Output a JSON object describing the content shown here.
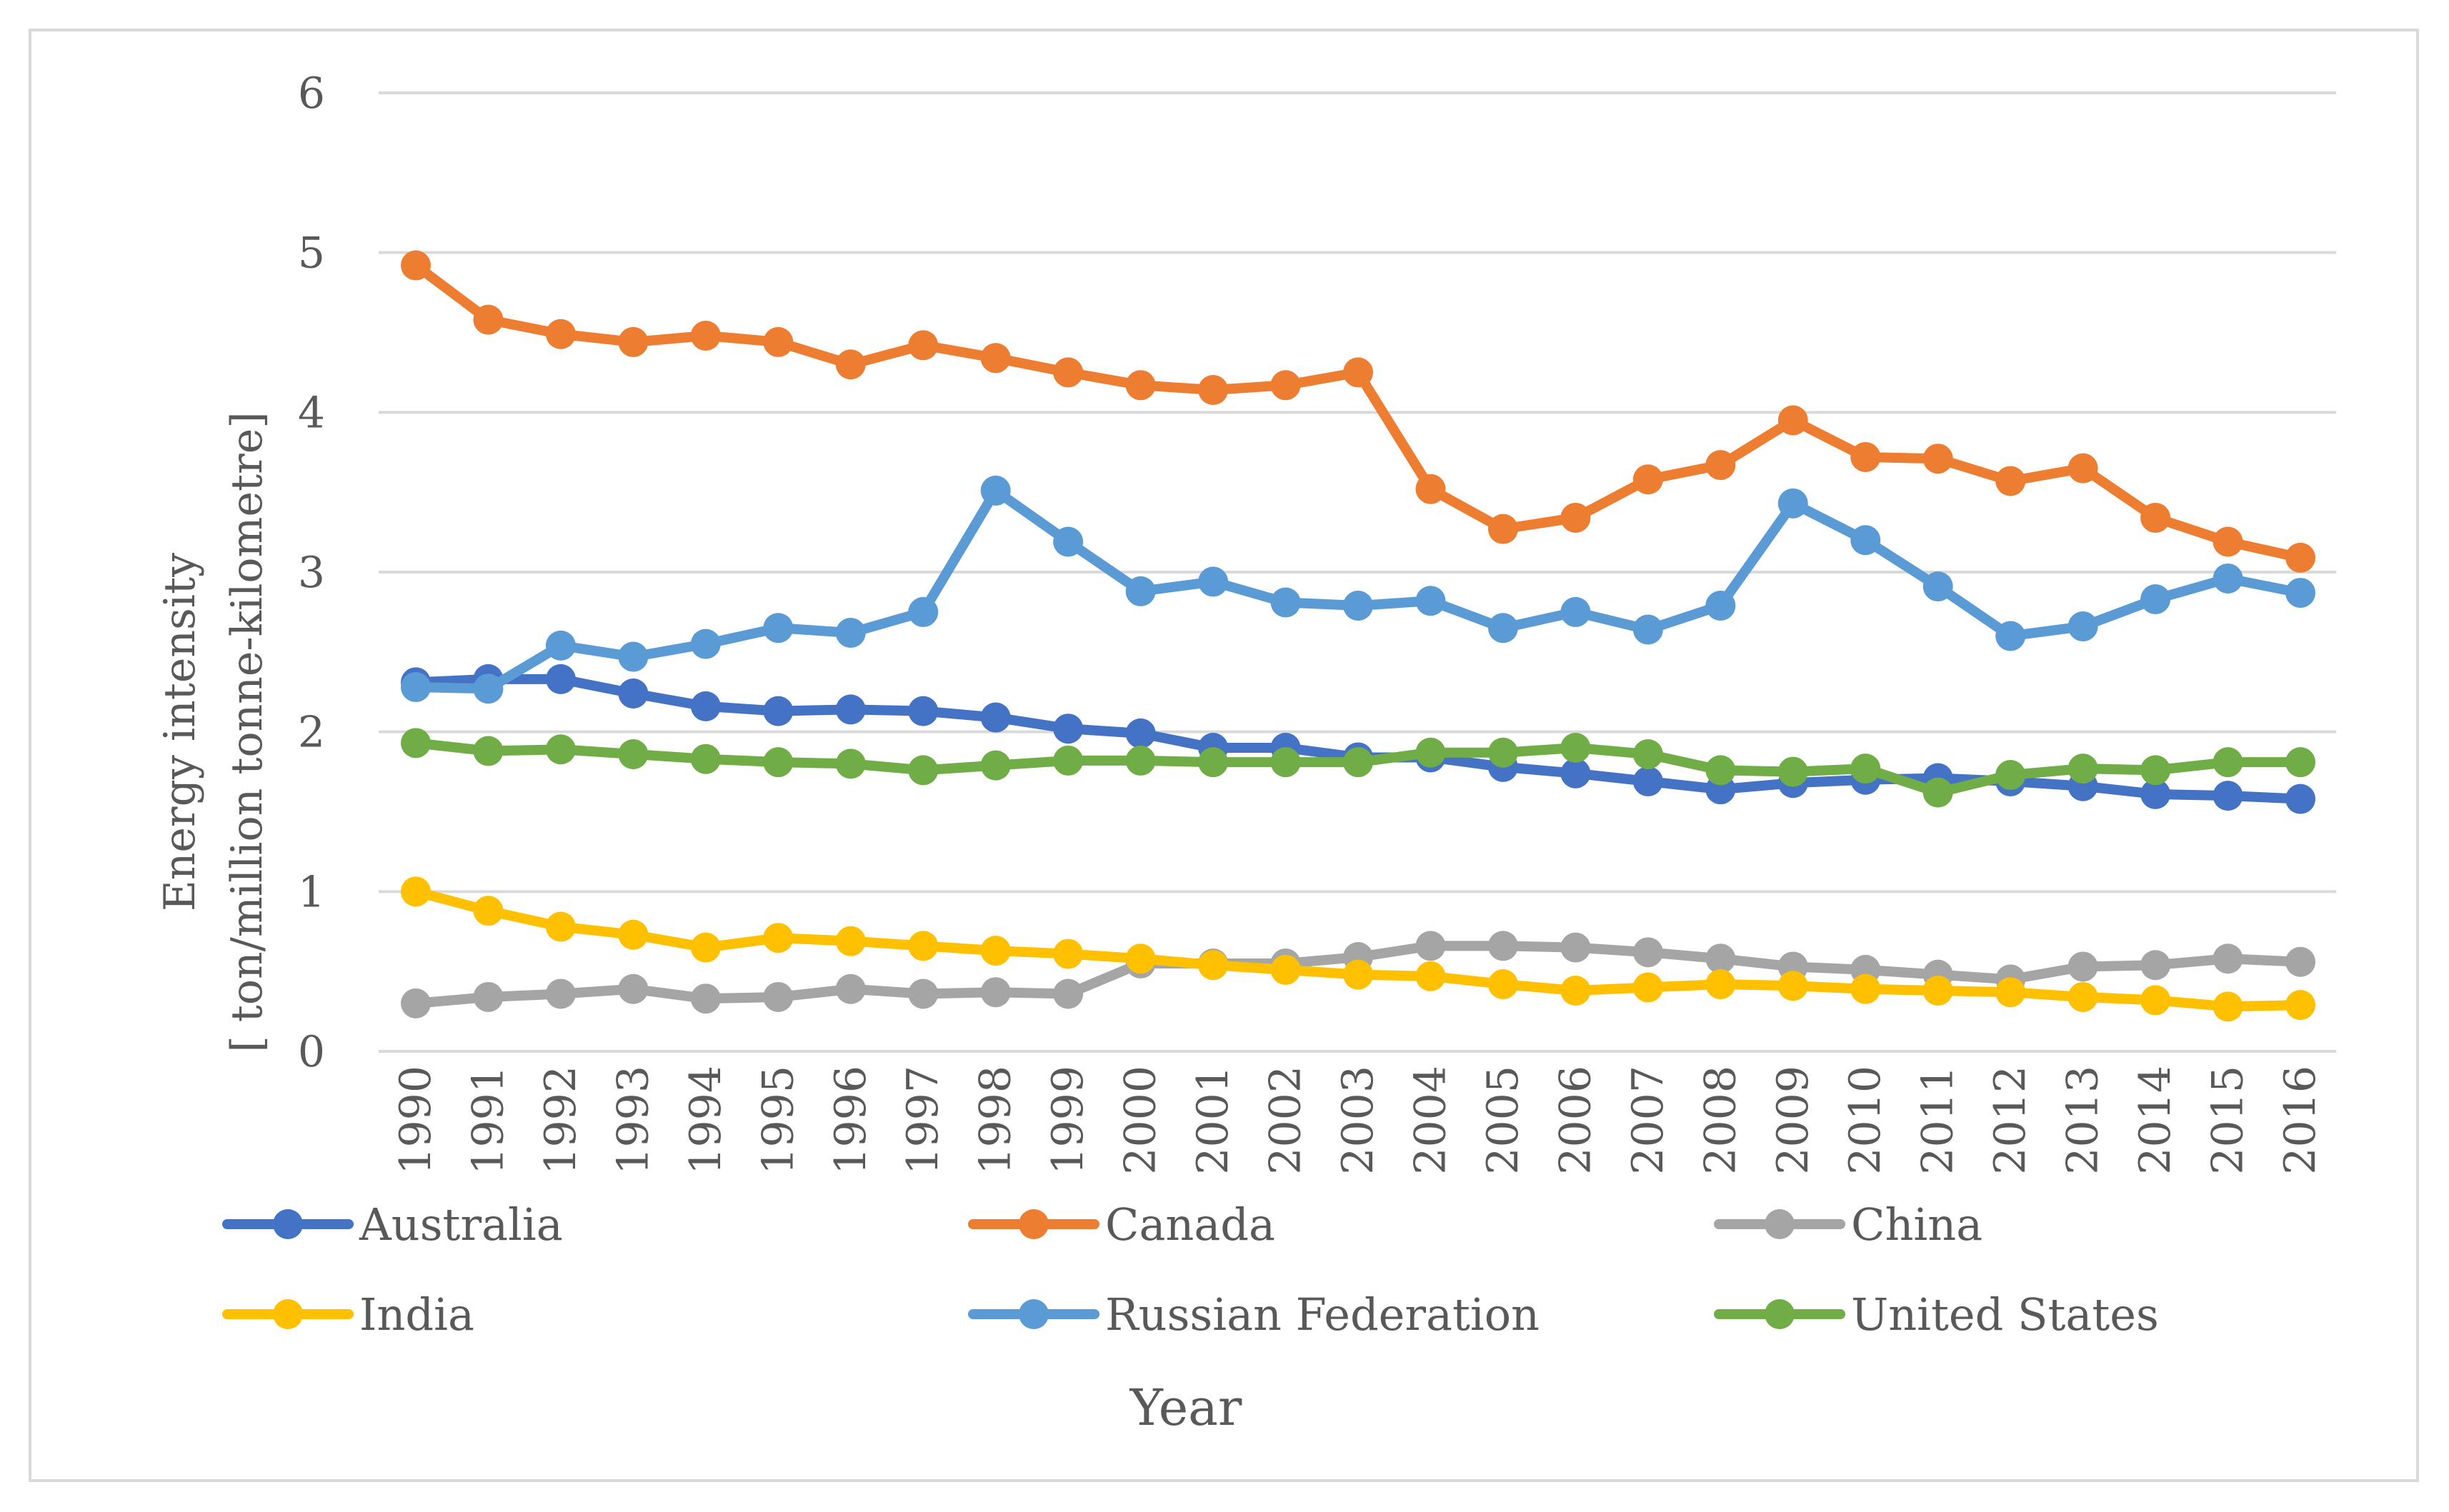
{
  "chart_data": {
    "type": "line",
    "title": "",
    "xlabel": "Year",
    "ylabel_line1": "Energy intensity",
    "ylabel_line2": "[ ton/million tonne-kilometre]",
    "ylim": [
      0,
      6
    ],
    "yticks": [
      "0",
      "1",
      "2",
      "3",
      "4",
      "5",
      "6"
    ],
    "grid": true,
    "legend_position": "bottom",
    "x": [
      "1990",
      "1991",
      "1992",
      "1993",
      "1994",
      "1995",
      "1996",
      "1997",
      "1998",
      "1999",
      "2000",
      "2001",
      "2002",
      "2003",
      "2004",
      "2005",
      "2006",
      "2007",
      "2008",
      "2009",
      "2010",
      "2011",
      "2012",
      "2013",
      "2014",
      "2015",
      "2016"
    ],
    "series": [
      {
        "name": "Australia",
        "color": "#4472c4",
        "values": [
          2.31,
          2.33,
          2.33,
          2.24,
          2.16,
          2.13,
          2.14,
          2.13,
          2.09,
          2.02,
          1.99,
          1.9,
          1.9,
          1.84,
          1.84,
          1.78,
          1.74,
          1.69,
          1.64,
          1.68,
          1.7,
          1.71,
          1.69,
          1.66,
          1.61,
          1.6,
          1.58
        ]
      },
      {
        "name": "Canada",
        "color": "#ed7d31",
        "values": [
          4.92,
          4.58,
          4.49,
          4.44,
          4.48,
          4.44,
          4.3,
          4.42,
          4.34,
          4.25,
          4.17,
          4.14,
          4.17,
          4.25,
          3.52,
          3.27,
          3.34,
          3.58,
          3.67,
          3.95,
          3.72,
          3.71,
          3.57,
          3.65,
          3.34,
          3.19,
          3.09
        ]
      },
      {
        "name": "China",
        "color": "#a5a5a5",
        "values": [
          0.3,
          0.34,
          0.36,
          0.39,
          0.33,
          0.34,
          0.39,
          0.36,
          0.37,
          0.36,
          0.55,
          0.55,
          0.55,
          0.59,
          0.66,
          0.66,
          0.65,
          0.62,
          0.58,
          0.53,
          0.51,
          0.48,
          0.45,
          0.53,
          0.54,
          0.58,
          0.56
        ]
      },
      {
        "name": "India",
        "color": "#ffc000",
        "values": [
          1.0,
          0.88,
          0.78,
          0.73,
          0.65,
          0.71,
          0.69,
          0.66,
          0.63,
          0.61,
          0.58,
          0.54,
          0.51,
          0.48,
          0.47,
          0.42,
          0.38,
          0.4,
          0.42,
          0.41,
          0.39,
          0.38,
          0.37,
          0.34,
          0.32,
          0.28,
          0.29
        ]
      },
      {
        "name": "Russian Federation",
        "color": "#5b9bd5",
        "values": [
          2.28,
          2.27,
          2.54,
          2.47,
          2.55,
          2.65,
          2.62,
          2.75,
          3.51,
          3.19,
          2.88,
          2.94,
          2.81,
          2.79,
          2.82,
          2.65,
          2.75,
          2.64,
          2.79,
          3.43,
          3.2,
          2.91,
          2.6,
          2.66,
          2.83,
          2.96,
          2.87
        ]
      },
      {
        "name": "United States",
        "color": "#70ad47",
        "values": [
          1.93,
          1.88,
          1.89,
          1.86,
          1.83,
          1.81,
          1.8,
          1.76,
          1.79,
          1.82,
          1.82,
          1.81,
          1.81,
          1.81,
          1.87,
          1.87,
          1.9,
          1.86,
          1.76,
          1.75,
          1.77,
          1.62,
          1.73,
          1.77,
          1.76,
          1.81,
          1.81
        ]
      }
    ]
  },
  "colors": {
    "grid": "#d9d9d9",
    "text": "#595959",
    "frame": "#d9d9d9"
  }
}
